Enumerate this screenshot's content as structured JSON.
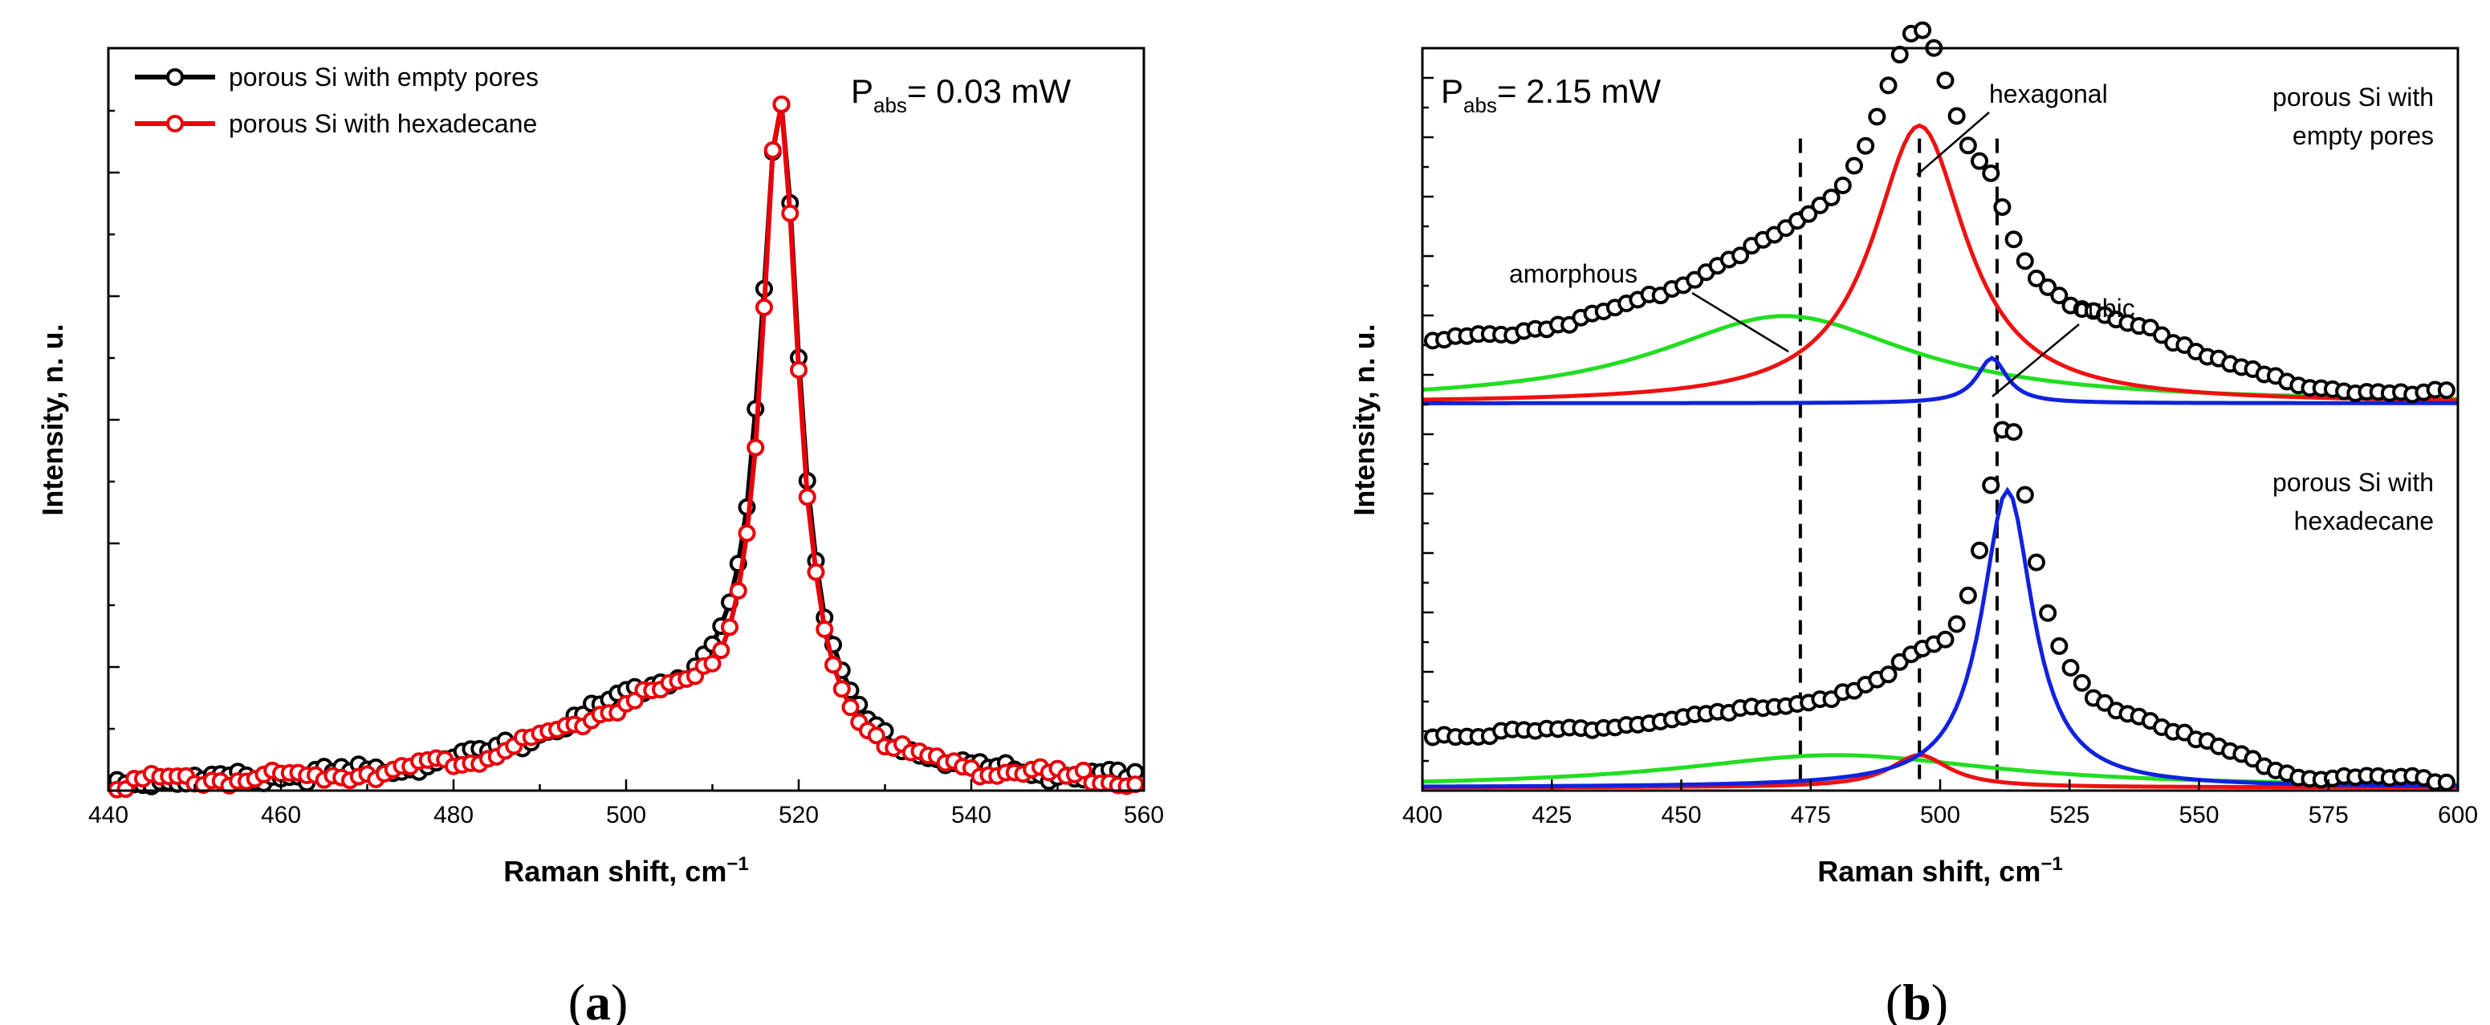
{
  "chart_data": [
    {
      "panel": "a",
      "panel_label": "a",
      "type": "line",
      "title": "",
      "xlabel": "Raman shift, cm",
      "xlabel_sup": "−1",
      "ylabel": "Intensity, n. u.",
      "xlim": [
        440,
        560
      ],
      "ylim": [
        0,
        1.12
      ],
      "xticks": [
        440,
        460,
        480,
        500,
        520,
        540,
        560
      ],
      "annotation": {
        "main": "P",
        "sub": "abs",
        "rest": "= 0.03 mW"
      },
      "legend_position": "top-left",
      "series": [
        {
          "name": "porous Si with empty pores",
          "color": "#000000",
          "marker": "open-circle",
          "model": {
            "peak": 517.8,
            "amplitude": 1.0,
            "fwhm": 5.6,
            "shoulder_amp": 0.12,
            "shoulder_center": 503,
            "shoulder_fwhm": 30,
            "baseline": 0.012
          }
        },
        {
          "name": "porous Si with hexadecane",
          "color": "#e8000b",
          "marker": "open-circle",
          "model": {
            "peak": 517.8,
            "amplitude": 1.0,
            "fwhm": 5.2,
            "shoulder_amp": 0.11,
            "shoulder_center": 503,
            "shoulder_fwhm": 30,
            "baseline": 0.012
          }
        }
      ]
    },
    {
      "panel": "b",
      "panel_label": "b",
      "type": "line",
      "title": "",
      "xlabel": "Raman shift, cm",
      "xlabel_sup": "−1",
      "ylabel": "Intensity, n. u.",
      "xlim": [
        400,
        600
      ],
      "ylim": [
        0,
        2.3
      ],
      "xticks": [
        400,
        425,
        450,
        475,
        500,
        525,
        550,
        575,
        600
      ],
      "annotation": {
        "main": "P",
        "sub": "abs",
        "rest": "= 2.15 mW"
      },
      "series_labels": {
        "top": [
          "porous Si with",
          "empty pores"
        ],
        "bottom": [
          "porous Si with",
          "hexadecane"
        ]
      },
      "component_labels": {
        "amorphous": "amorphous",
        "hexagonal": "hexagonal",
        "cubic": "cubic"
      },
      "dashed_lines_x": [
        473,
        496,
        511
      ],
      "spectra": [
        {
          "name": "porous Si with empty pores",
          "offset": 1.19,
          "components": [
            {
              "name": "amorphous",
              "color": "#22dd22",
              "center": 470,
              "amplitude": 0.27,
              "fwhm": 60
            },
            {
              "name": "hexagonal",
              "color": "#ee1111",
              "center": 496,
              "amplitude": 0.86,
              "fwhm": 22
            },
            {
              "name": "cubic",
              "color": "#1122dd",
              "center": 510,
              "amplitude": 0.14,
              "fwhm": 7
            }
          ],
          "background": 0.012
        },
        {
          "name": "porous Si with hexadecane",
          "offset": 0.0,
          "components": [
            {
              "name": "amorphous",
              "color": "#22dd22",
              "center": 480,
              "amplitude": 0.1,
              "fwhm": 75
            },
            {
              "name": "hexagonal",
              "color": "#ee1111",
              "center": 496,
              "amplitude": 0.1,
              "fwhm": 14
            },
            {
              "name": "cubic",
              "color": "#1122dd",
              "center": 513,
              "amplitude": 0.92,
              "fwhm": 12
            }
          ],
          "background": 0.015
        }
      ]
    }
  ]
}
